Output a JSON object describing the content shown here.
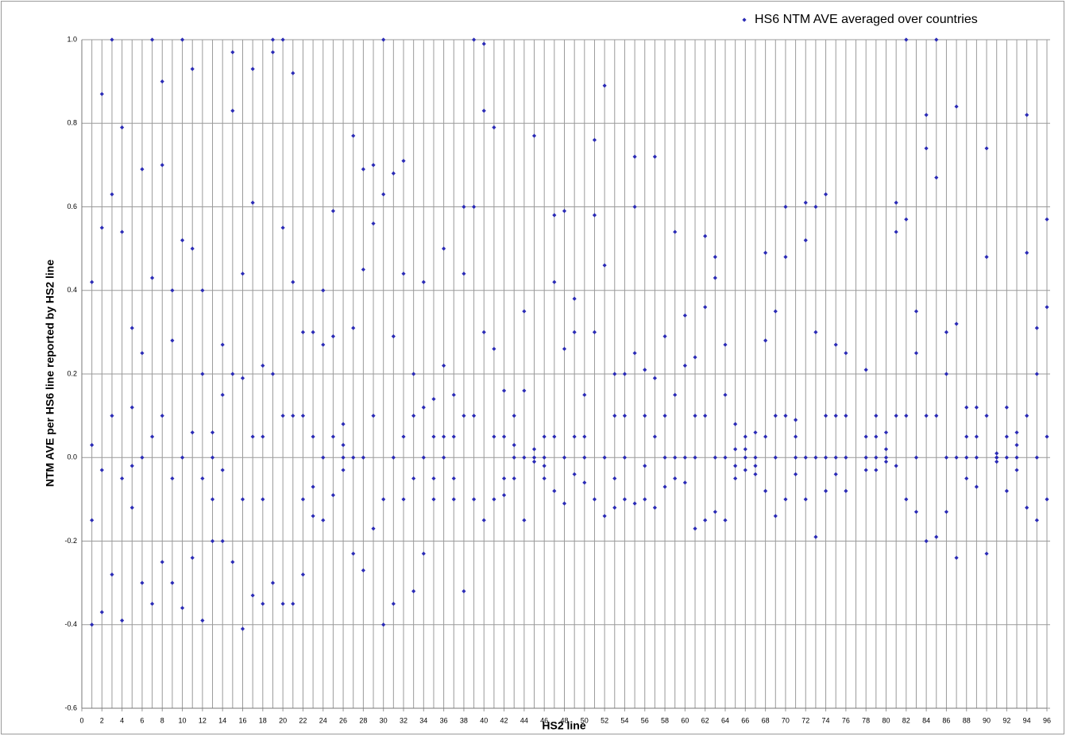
{
  "chart_data": {
    "type": "scatter",
    "xlabel": "HS2 line",
    "ylabel": "NTM AVE per HS6 line reported by HS2 line",
    "legend": "top-right",
    "grid": true,
    "xlim": [
      0,
      96
    ],
    "ylim": [
      -0.6,
      1.0
    ],
    "xticks": [
      0,
      2,
      4,
      6,
      8,
      10,
      12,
      14,
      16,
      18,
      20,
      22,
      24,
      26,
      28,
      30,
      32,
      34,
      36,
      38,
      40,
      42,
      44,
      46,
      48,
      50,
      52,
      54,
      56,
      58,
      60,
      62,
      64,
      66,
      68,
      70,
      72,
      74,
      76,
      78,
      80,
      82,
      84,
      86,
      88,
      90,
      92,
      94,
      96
    ],
    "xminorticks": [
      1,
      3,
      5,
      7,
      9,
      11,
      13,
      15,
      17,
      19,
      21,
      23,
      25,
      27,
      29,
      31,
      33,
      35,
      37,
      39,
      41,
      43,
      45,
      47,
      49,
      51,
      53,
      55,
      57,
      59,
      61,
      63,
      65,
      67,
      69,
      71,
      73,
      75,
      77,
      79,
      81,
      83,
      85,
      87,
      89,
      91,
      93,
      95
    ],
    "yticks": [
      -0.6,
      -0.4,
      -0.2,
      {
        "value": 0,
        "label": "0.0"
      },
      0.2,
      0.4,
      0.6,
      0.8,
      {
        "value": 1,
        "label": "1.0"
      }
    ],
    "series": [
      {
        "name": "HS6 NTM AVE averaged over countries",
        "color": "#2b2bb5",
        "x": [
          1,
          1,
          1,
          1,
          2,
          2,
          2,
          2,
          3,
          3,
          3,
          3,
          4,
          4,
          4,
          4,
          5,
          5,
          5,
          5,
          6,
          6,
          6,
          6,
          7,
          7,
          7,
          7,
          8,
          8,
          8,
          8,
          9,
          9,
          9,
          9,
          10,
          10,
          10,
          10,
          11,
          11,
          11,
          11,
          12,
          12,
          12,
          12,
          13,
          13,
          13,
          13,
          14,
          14,
          14,
          14,
          15,
          15,
          15,
          15,
          16,
          16,
          16,
          16,
          17,
          17,
          17,
          17,
          18,
          18,
          18,
          18,
          19,
          19,
          19,
          19,
          20,
          20,
          20,
          20,
          21,
          21,
          21,
          21,
          22,
          22,
          22,
          22,
          23,
          23,
          23,
          23,
          24,
          24,
          24,
          24,
          25,
          25,
          25,
          25,
          26,
          26,
          26,
          26,
          27,
          27,
          27,
          27,
          28,
          28,
          28,
          28,
          29,
          29,
          29,
          29,
          30,
          30,
          30,
          30,
          31,
          31,
          31,
          31,
          32,
          32,
          32,
          32,
          33,
          33,
          33,
          33,
          34,
          34,
          34,
          34,
          35,
          35,
          35,
          35,
          36,
          36,
          36,
          36,
          37,
          37,
          37,
          37,
          38,
          38,
          38,
          38,
          39,
          39,
          39,
          39,
          40,
          40,
          40,
          40,
          41,
          41,
          41,
          41,
          42,
          42,
          42,
          42,
          43,
          43,
          43,
          43,
          44,
          44,
          44,
          44,
          45,
          45,
          45,
          45,
          46,
          46,
          46,
          46,
          47,
          47,
          47,
          47,
          48,
          48,
          48,
          48,
          49,
          49,
          49,
          49,
          50,
          50,
          50,
          50,
          51,
          51,
          51,
          51,
          52,
          52,
          52,
          52,
          53,
          53,
          53,
          53,
          54,
          54,
          54,
          54,
          55,
          55,
          55,
          55,
          56,
          56,
          56,
          56,
          57,
          57,
          57,
          57,
          58,
          58,
          58,
          58,
          59,
          59,
          59,
          59,
          60,
          60,
          60,
          60,
          61,
          61,
          61,
          61,
          62,
          62,
          62,
          62,
          63,
          63,
          63,
          63,
          64,
          64,
          64,
          64,
          65,
          65,
          65,
          65,
          66,
          66,
          66,
          66,
          67,
          67,
          67,
          67,
          68,
          68,
          68,
          68,
          69,
          69,
          69,
          69,
          70,
          70,
          70,
          70,
          71,
          71,
          71,
          71,
          72,
          72,
          72,
          72,
          73,
          73,
          73,
          73,
          74,
          74,
          74,
          74,
          75,
          75,
          75,
          75,
          76,
          76,
          76,
          76,
          78,
          78,
          78,
          78,
          79,
          79,
          79,
          79,
          80,
          80,
          80,
          80,
          81,
          81,
          81,
          81,
          82,
          82,
          82,
          82,
          83,
          83,
          83,
          83,
          84,
          84,
          84,
          84,
          85,
          85,
          85,
          85,
          86,
          86,
          86,
          86,
          87,
          87,
          87,
          87,
          88,
          88,
          88,
          88,
          89,
          89,
          89,
          89,
          90,
          90,
          90,
          90,
          91,
          91,
          91,
          91,
          92,
          92,
          92,
          92,
          93,
          93,
          93,
          93,
          94,
          94,
          94,
          94,
          95,
          95,
          95,
          95,
          96,
          96,
          96,
          96
        ],
        "values": [
          0.42,
          0.03,
          -0.15,
          -0.4,
          0.87,
          0.55,
          -0.03,
          -0.37,
          1.0,
          0.63,
          0.1,
          -0.28,
          0.79,
          0.54,
          -0.05,
          -0.39,
          0.31,
          0.12,
          -0.02,
          -0.12,
          0.69,
          0.25,
          0.0,
          -0.3,
          1.0,
          0.43,
          0.05,
          -0.35,
          0.9,
          0.7,
          0.1,
          -0.25,
          0.4,
          0.28,
          -0.05,
          -0.3,
          1.0,
          0.52,
          0.0,
          -0.36,
          0.93,
          0.5,
          0.06,
          -0.24,
          0.4,
          0.2,
          -0.05,
          -0.39,
          0.06,
          0.0,
          -0.1,
          -0.2,
          0.27,
          0.15,
          -0.03,
          -0.2,
          0.97,
          0.83,
          0.2,
          -0.25,
          0.44,
          0.19,
          -0.1,
          -0.41,
          0.93,
          0.61,
          0.05,
          -0.33,
          0.22,
          0.05,
          -0.1,
          -0.35,
          1.0,
          0.97,
          0.2,
          -0.3,
          1.0,
          0.55,
          0.1,
          -0.35,
          0.92,
          0.42,
          0.1,
          -0.35,
          0.3,
          0.1,
          -0.1,
          -0.28,
          0.3,
          0.05,
          -0.07,
          -0.14,
          0.4,
          0.27,
          0.0,
          -0.15,
          0.59,
          0.29,
          0.05,
          -0.09,
          0.08,
          0.03,
          0.0,
          -0.03,
          0.77,
          0.31,
          0.0,
          -0.23,
          0.69,
          0.45,
          0.0,
          -0.27,
          0.7,
          0.56,
          0.1,
          -0.17,
          1.0,
          0.63,
          -0.1,
          -0.4,
          0.68,
          0.29,
          0.0,
          -0.35,
          0.71,
          0.44,
          0.05,
          -0.1,
          0.2,
          0.1,
          -0.05,
          -0.32,
          0.42,
          0.12,
          0.0,
          -0.23,
          0.14,
          0.05,
          -0.05,
          -0.1,
          0.5,
          0.22,
          0.05,
          0.0,
          0.15,
          0.05,
          -0.05,
          -0.1,
          0.6,
          0.44,
          0.1,
          -0.32,
          1.0,
          0.6,
          0.1,
          -0.1,
          0.99,
          0.83,
          0.3,
          -0.15,
          0.79,
          0.26,
          0.05,
          -0.1,
          0.16,
          0.05,
          -0.05,
          -0.09,
          0.1,
          0.03,
          0.0,
          -0.05,
          0.35,
          0.16,
          0.0,
          -0.15,
          0.77,
          0.02,
          0.0,
          -0.01,
          0.05,
          0.0,
          -0.02,
          -0.05,
          0.58,
          0.42,
          0.05,
          -0.08,
          0.59,
          0.26,
          0.0,
          -0.11,
          0.38,
          0.3,
          0.05,
          -0.04,
          0.15,
          0.05,
          0.0,
          -0.06,
          0.76,
          0.58,
          0.3,
          -0.1,
          0.89,
          0.46,
          0.0,
          -0.14,
          0.2,
          0.1,
          -0.05,
          -0.12,
          0.2,
          0.1,
          0.0,
          -0.1,
          0.72,
          0.6,
          0.25,
          -0.11,
          0.21,
          0.1,
          -0.02,
          -0.1,
          0.72,
          0.19,
          0.05,
          -0.12,
          0.29,
          0.1,
          0.0,
          -0.07,
          0.54,
          0.15,
          0.0,
          -0.05,
          0.34,
          0.22,
          0.0,
          -0.06,
          0.24,
          0.1,
          0.0,
          -0.17,
          0.53,
          0.36,
          0.1,
          -0.15,
          0.48,
          0.43,
          0.0,
          -0.13,
          0.27,
          0.15,
          0.0,
          -0.15,
          0.08,
          0.02,
          -0.02,
          -0.05,
          0.05,
          0.02,
          0.0,
          -0.03,
          0.06,
          0.0,
          -0.02,
          -0.04,
          0.49,
          0.28,
          0.05,
          -0.08,
          0.35,
          0.1,
          0.0,
          -0.14,
          0.6,
          0.48,
          0.1,
          -0.1,
          0.09,
          0.05,
          0.0,
          -0.04,
          0.61,
          0.52,
          0.0,
          -0.1,
          0.6,
          0.3,
          0.0,
          -0.19,
          0.63,
          0.1,
          0.0,
          -0.08,
          0.27,
          0.1,
          0.0,
          -0.04,
          0.25,
          0.1,
          0.0,
          -0.08,
          0.21,
          0.05,
          0.0,
          -0.03,
          0.1,
          0.05,
          0.0,
          -0.03,
          0.06,
          0.02,
          0.0,
          -0.01,
          0.61,
          0.54,
          0.1,
          -0.02,
          1.0,
          0.57,
          0.1,
          -0.1,
          0.35,
          0.25,
          0.0,
          -0.13,
          0.82,
          0.74,
          0.1,
          -0.2,
          1.0,
          0.67,
          0.1,
          -0.19,
          0.3,
          0.2,
          0.0,
          -0.13,
          0.84,
          0.32,
          0.0,
          -0.24,
          0.12,
          0.05,
          0.0,
          -0.05,
          0.12,
          0.05,
          0.0,
          -0.07,
          0.74,
          0.48,
          0.1,
          -0.23,
          0.01,
          0.0,
          -0.01,
          0.0,
          0.12,
          0.05,
          0.0,
          -0.08,
          0.06,
          0.03,
          0.0,
          -0.03,
          0.82,
          0.49,
          0.1,
          -0.12,
          0.31,
          0.2,
          0.0,
          -0.15,
          0.57,
          0.36,
          0.05,
          -0.1
        ]
      }
    ]
  }
}
